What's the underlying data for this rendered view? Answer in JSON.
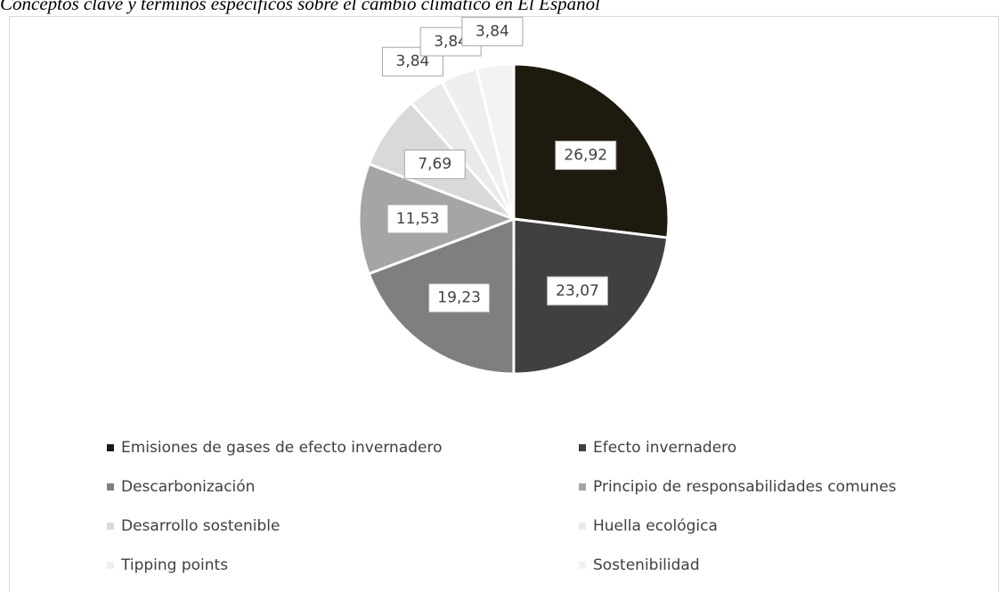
{
  "chart_data": {
    "type": "pie",
    "title": "Conceptos clave y términos específicos sobre el cambio climático en El Español",
    "categories": [
      "Emisiones de gases de efecto invernadero",
      "Efecto invernadero",
      "Descarbonización",
      "Principio de responsabilidades comunes",
      "Desarrollo sostenible",
      "Huella ecológica",
      "Tipping points",
      "Sostenibilidad"
    ],
    "values": [
      26.92,
      23.07,
      19.23,
      11.53,
      7.69,
      3.84,
      3.84,
      3.84
    ],
    "value_labels": [
      "26,92",
      "23,07",
      "19,23",
      "11,53",
      "7,69",
      "3,84",
      "3,84",
      "3,84"
    ],
    "colors": [
      "#1e1a0f",
      "#404040",
      "#7f7f7f",
      "#a5a5a5",
      "#d9d9d9",
      "#eaeaea",
      "#efefef",
      "#f2f2f2"
    ],
    "legend": "bottom"
  }
}
